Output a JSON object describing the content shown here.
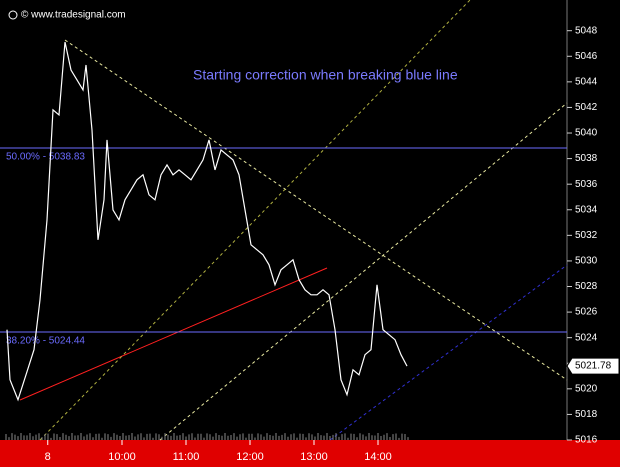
{
  "chart_data": {
    "type": "line",
    "source": "© www.tradesignal.com",
    "annotation": "Starting correction when breaking blue line",
    "x": [
      8.203,
      8.25,
      8.375,
      8.5,
      8.625,
      8.719,
      8.828,
      8.922,
      9.016,
      9.11,
      9.203,
      9.297,
      9.391,
      9.438,
      9.531,
      9.625,
      9.719,
      9.766,
      9.86,
      9.953,
      10.047,
      10.141,
      10.235,
      10.328,
      10.422,
      10.516,
      10.61,
      10.703,
      10.797,
      10.891,
      10.985,
      11.078,
      11.172,
      11.266,
      11.36,
      11.453,
      11.547,
      11.641,
      11.735,
      11.828,
      11.922,
      12.016,
      12.11,
      12.203,
      12.297,
      12.391,
      12.485,
      12.578,
      12.672,
      12.766,
      12.86,
      12.953,
      13.047,
      13.141,
      13.235,
      13.328,
      13.422,
      13.516,
      13.61,
      13.703,
      13.797,
      13.891,
      13.985,
      14.078,
      14.172,
      14.266,
      14.36,
      14.453
    ],
    "values": [
      5024.62,
      5020.71,
      5019.15,
      5021.1,
      5023.06,
      5026.96,
      5033.21,
      5041.81,
      5041.42,
      5047.12,
      5044.93,
      5044.15,
      5043.37,
      5045.32,
      5040.24,
      5031.65,
      5034.78,
      5039.46,
      5033.99,
      5033.21,
      5034.78,
      5035.56,
      5036.34,
      5036.73,
      5035.17,
      5034.78,
      5036.73,
      5037.51,
      5036.73,
      5037.12,
      5036.73,
      5036.34,
      5037.12,
      5037.9,
      5039.46,
      5037.12,
      5038.68,
      5038.29,
      5037.9,
      5036.73,
      5033.99,
      5031.26,
      5030.87,
      5030.48,
      5029.7,
      5028.13,
      5029.31,
      5029.7,
      5030.09,
      5028.53,
      5027.74,
      5027.35,
      5027.35,
      5027.74,
      5027.35,
      5024.62,
      5020.71,
      5019.54,
      5021.49,
      5021.1,
      5022.67,
      5023.06,
      5028.13,
      5024.62,
      5024.23,
      5023.84,
      5022.67,
      5021.78
    ],
    "color": "#ffffff",
    "last_value": 5021.78,
    "hlines": [
      {
        "value": 5038.83,
        "label": "50.00% - 5038.83"
      },
      {
        "value": 5024.44,
        "label": "38.20% - 5024.44"
      }
    ],
    "hline_color": "#6b6bff",
    "xlim": [
      8.094,
      16.953
    ],
    "xticks": [
      {
        "value": 8.84,
        "label": "8"
      },
      {
        "value": 10,
        "label": "10:00"
      },
      {
        "value": 11,
        "label": "11:00"
      },
      {
        "value": 12,
        "label": "12:00"
      },
      {
        "value": 13,
        "label": "13:00"
      },
      {
        "value": 14,
        "label": "14:00"
      }
    ],
    "ylim": [
      5016,
      5050.4
    ],
    "yticks": [
      5016,
      5018,
      5020,
      5022,
      5024,
      5026,
      5028,
      5030,
      5032,
      5034,
      5036,
      5038,
      5040,
      5042,
      5044,
      5046,
      5048
    ],
    "grid": false
  }
}
